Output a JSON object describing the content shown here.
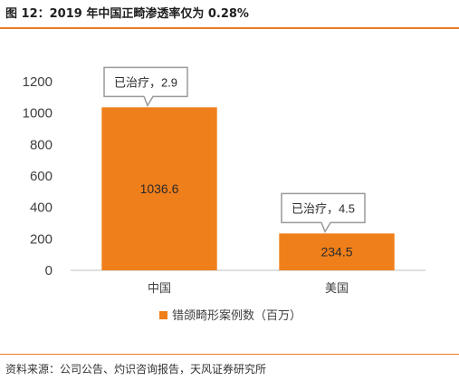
{
  "figure": {
    "title": "图 12：2019 年中国正畸渗透率仅为 0.28%",
    "source": "资料来源：公司公告、灼识咨询报告，天风证券研究所"
  },
  "colors": {
    "bar": "#ef7f1a",
    "accent_rule": "#ea7c28",
    "callout_border": "#9a9a9a",
    "axis": "#bfbfbf",
    "text": "#404040"
  },
  "chart_data": {
    "type": "bar",
    "categories": [
      "中国",
      "美国"
    ],
    "series": [
      {
        "name": "错颌畸形案例数（百万）",
        "values": [
          1036.6,
          234.5
        ]
      }
    ],
    "value_labels": [
      "1036.6",
      "234.5"
    ],
    "annotations": [
      "已治疗，2.9",
      "已治疗，4.5"
    ],
    "yticks": [
      0,
      200,
      400,
      600,
      800,
      1000,
      1200
    ],
    "ylim": [
      0,
      1200
    ],
    "grid": false,
    "legend_position": "bottom"
  }
}
